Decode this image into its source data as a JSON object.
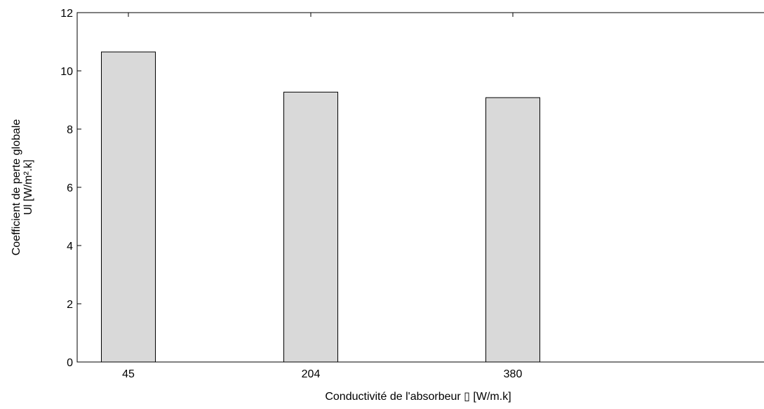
{
  "chart_data": {
    "type": "bar",
    "categories": [
      "45",
      "204",
      "380"
    ],
    "values": [
      10.65,
      9.27,
      9.08
    ],
    "xlabel": "Conductivité de l'absorbeur ▯ [W/m.k]",
    "ylabel_lines": [
      "Coefficient de perte globale",
      "Ul [W/m².k]"
    ],
    "ylim": [
      0,
      12
    ],
    "yticks": [
      0,
      2,
      4,
      6,
      8,
      10,
      12
    ],
    "grid": false,
    "legend": "none",
    "colors": {
      "bar_fill": "#d9d9d9",
      "bar_stroke": "#000000",
      "axis": "#000000",
      "background": "#ffffff"
    }
  }
}
